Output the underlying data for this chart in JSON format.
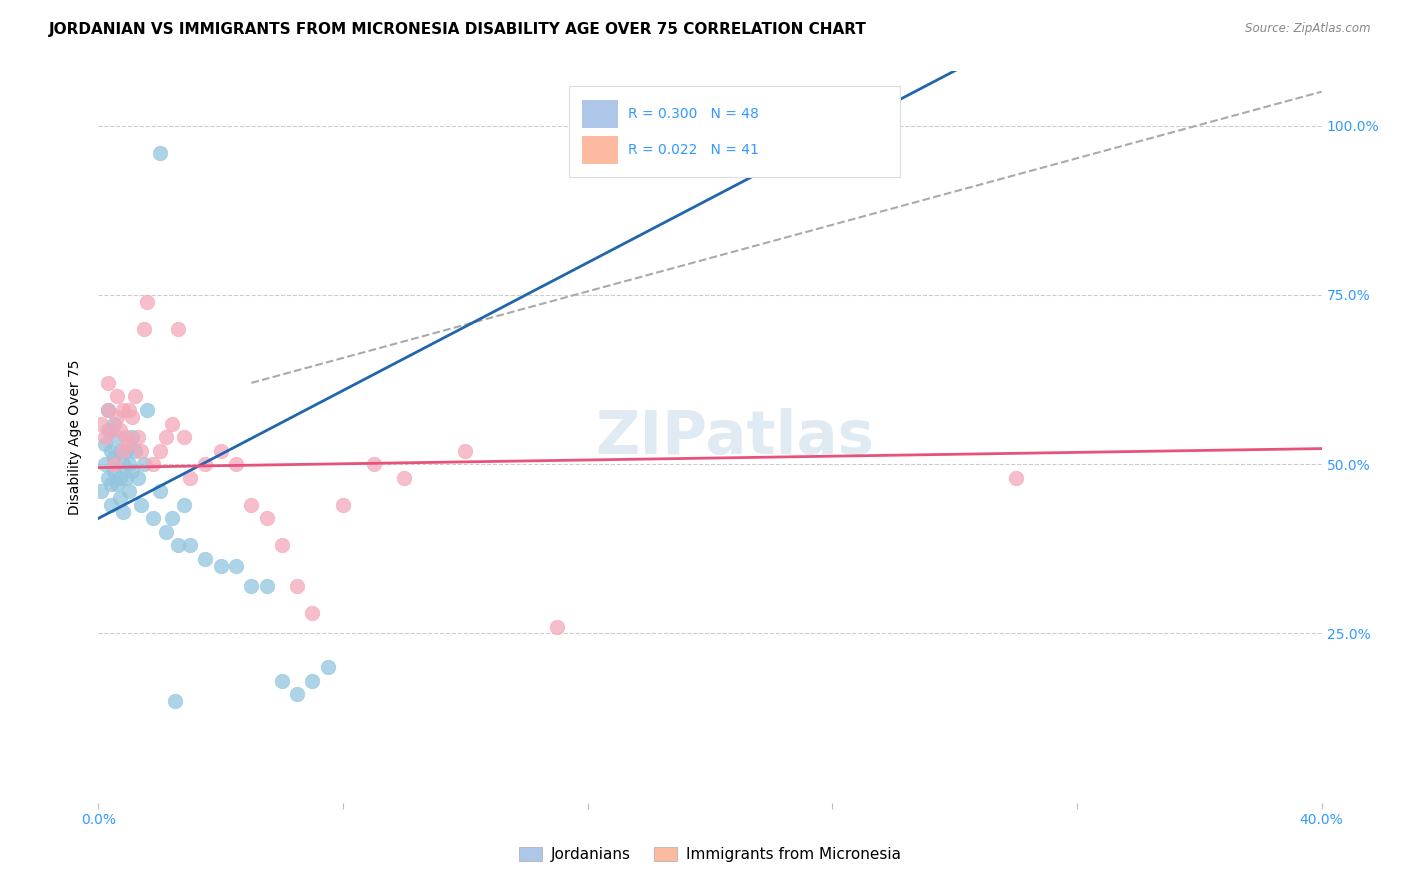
{
  "title": "JORDANIAN VS IMMIGRANTS FROM MICRONESIA DISABILITY AGE OVER 75 CORRELATION CHART",
  "source": "Source: ZipAtlas.com",
  "ylabel": "Disability Age Over 75",
  "xlim": [
    0.0,
    0.4
  ],
  "ylim": [
    0.0,
    1.08
  ],
  "blue_scatter_color": "#92c5de",
  "pink_scatter_color": "#f4a7b9",
  "blue_line_color": "#2166ac",
  "pink_line_color": "#e8527a",
  "dashed_line_color": "#aaaaaa",
  "legend_blue_fill": "#aec7e8",
  "legend_pink_fill": "#fcbba1",
  "watermark": "ZIPatlas",
  "title_fontsize": 11,
  "axis_label_fontsize": 10,
  "tick_fontsize": 10,
  "blue_r": "0.300",
  "blue_n": "48",
  "pink_r": "0.022",
  "pink_n": "41",
  "jordanians_x": [
    0.001,
    0.002,
    0.002,
    0.003,
    0.003,
    0.003,
    0.004,
    0.004,
    0.004,
    0.005,
    0.005,
    0.005,
    0.006,
    0.006,
    0.007,
    0.007,
    0.007,
    0.008,
    0.008,
    0.009,
    0.009,
    0.01,
    0.01,
    0.011,
    0.011,
    0.012,
    0.013,
    0.014,
    0.015,
    0.016,
    0.018,
    0.02,
    0.022,
    0.024,
    0.026,
    0.028,
    0.03,
    0.035,
    0.04,
    0.045,
    0.05,
    0.055,
    0.06,
    0.065,
    0.07,
    0.075,
    0.02,
    0.025
  ],
  "jordanians_y": [
    0.46,
    0.5,
    0.53,
    0.48,
    0.55,
    0.58,
    0.47,
    0.52,
    0.44,
    0.51,
    0.49,
    0.56,
    0.47,
    0.54,
    0.48,
    0.52,
    0.45,
    0.5,
    0.43,
    0.52,
    0.48,
    0.5,
    0.46,
    0.54,
    0.49,
    0.52,
    0.48,
    0.44,
    0.5,
    0.58,
    0.42,
    0.46,
    0.4,
    0.42,
    0.38,
    0.44,
    0.38,
    0.36,
    0.35,
    0.35,
    0.32,
    0.32,
    0.18,
    0.16,
    0.18,
    0.2,
    0.96,
    0.15
  ],
  "micronesia_x": [
    0.001,
    0.002,
    0.003,
    0.003,
    0.004,
    0.005,
    0.006,
    0.006,
    0.007,
    0.008,
    0.008,
    0.009,
    0.01,
    0.01,
    0.011,
    0.012,
    0.013,
    0.014,
    0.015,
    0.016,
    0.018,
    0.02,
    0.022,
    0.024,
    0.026,
    0.028,
    0.03,
    0.035,
    0.04,
    0.045,
    0.05,
    0.055,
    0.06,
    0.065,
    0.07,
    0.08,
    0.09,
    0.1,
    0.12,
    0.15,
    0.3
  ],
  "micronesia_y": [
    0.56,
    0.54,
    0.58,
    0.62,
    0.55,
    0.5,
    0.6,
    0.57,
    0.55,
    0.52,
    0.58,
    0.54,
    0.53,
    0.58,
    0.57,
    0.6,
    0.54,
    0.52,
    0.7,
    0.74,
    0.5,
    0.52,
    0.54,
    0.56,
    0.7,
    0.54,
    0.48,
    0.5,
    0.52,
    0.5,
    0.44,
    0.42,
    0.38,
    0.32,
    0.28,
    0.44,
    0.5,
    0.48,
    0.52,
    0.26,
    0.48
  ]
}
